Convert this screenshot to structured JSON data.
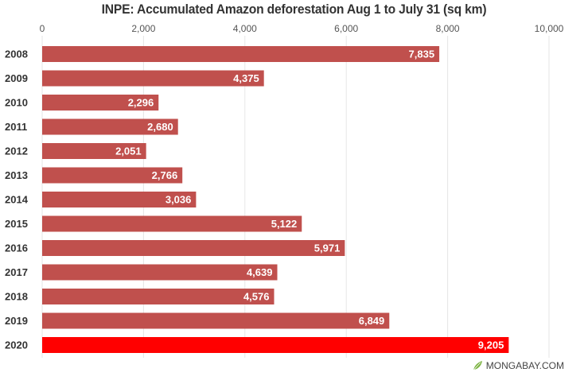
{
  "credit": {
    "text": "MONGABAY.COM",
    "icon": "leaf-logo-icon"
  },
  "colors": {
    "bar": "#c0504d",
    "highlight_bar": "#ff0000",
    "grid": "#e6e6e6",
    "axis_text": "#555555",
    "label_text": "#ffffff"
  },
  "chart_data": {
    "type": "bar",
    "orientation": "horizontal",
    "title": "INPE: Accumulated Amazon deforestation Aug 1 to July 31 (sq km)",
    "xlabel": "",
    "ylabel": "",
    "categories": [
      "2008",
      "2009",
      "2010",
      "2011",
      "2012",
      "2013",
      "2014",
      "2015",
      "2016",
      "2017",
      "2018",
      "2019",
      "2020"
    ],
    "values": [
      7835,
      4375,
      2296,
      2680,
      2051,
      2766,
      3036,
      5122,
      5971,
      4639,
      4576,
      6849,
      9205
    ],
    "value_labels": [
      "7,835",
      "4,375",
      "2,296",
      "2,680",
      "2,051",
      "2,766",
      "3,036",
      "5,122",
      "5,971",
      "4,639",
      "4,576",
      "6,849",
      "9,205"
    ],
    "highlight_category": "2020",
    "xlim": [
      0,
      10000
    ],
    "xticks": [
      0,
      2000,
      4000,
      6000,
      8000,
      10000
    ],
    "xtick_labels": [
      "0",
      "2,000",
      "4,000",
      "6,000",
      "8,000",
      "10,000"
    ],
    "xaxis_position": "top",
    "grid": true,
    "legend": "none"
  }
}
